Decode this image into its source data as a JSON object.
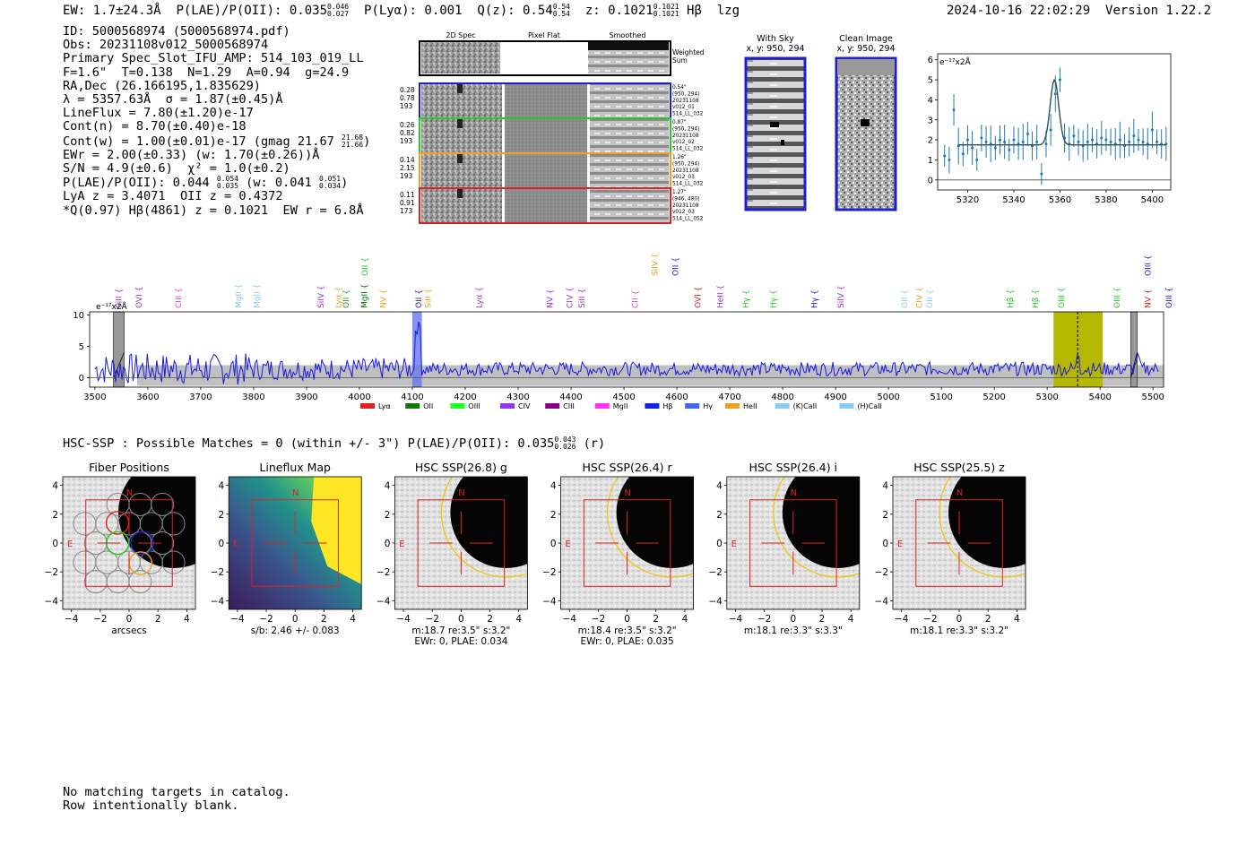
{
  "header": {
    "ew": "EW: 1.7±24.3Å",
    "plae_label": "P(LAE)/P(OII): 0.035",
    "plae_hi": "0.046",
    "plae_lo": "0.027",
    "plya": "P(Lyα): 0.001",
    "qz_label": "Q(z): 0.54",
    "qz_hi": "0.54",
    "qz_lo": "0.54",
    "z_label": "z: 0.1021",
    "z_hi": "0.1021",
    "z_lo": "0.1021",
    "line": "Hβ",
    "flag": "lzg",
    "timestamp": "2024-10-16 22:02:29",
    "version": "Version 1.22.2"
  },
  "info": {
    "id": "ID: 5000568974 (5000568974.pdf)",
    "obs": "Obs: 20231108v012_5000568974",
    "primary": "Primary Spec_Slot_IFU_AMP: 514_103_019_LL",
    "fit": "F=1.6\"  T=0.138  N=1.29  A=0.94  g=24.9",
    "radec": "RA,Dec (26.166195,1.835629)",
    "lambda": "λ = 5357.63Å  σ = 1.87(±0.45)Å",
    "lineflux": "LineFlux = 7.80(±1.20)e-17",
    "contn": "Cont(n) = 8.70(±0.40)e-18",
    "contw_pre": "Cont(w) = 1.00(±0.01)e-17 (gmag 21.67",
    "contw_hi": "21.68",
    "contw_lo": "21.66",
    "contw_post": ")",
    "ewr": "EWr = 2.00(±0.33) (w: 1.70(±0.26))Å",
    "sn": "S/N = 4.9(±0.6)  χ² = 1.0(±0.2)",
    "plae_pre": "P(LAE)/P(OII): 0.044",
    "plae_hi": "0.054",
    "plae_lo": "0.035",
    "plae_mid": " (w: 0.041",
    "plae_whi": "0.051",
    "plae_wlo": "0.034",
    "plae_post": ")",
    "lya": "LyA z = 3.4071  OII z = 0.4372",
    "q": "*Q(0.97) Hβ(4861) z = 0.1021  EW r = 6.8Å"
  },
  "cutouts": {
    "headers": [
      "2D Spec",
      "Pixel Flat",
      "Smoothed"
    ],
    "weighted": [
      "Weighted",
      "Sum"
    ],
    "rows": [
      {
        "color": "#1f1fcc",
        "left": [
          "0.28",
          "0.78",
          "193"
        ],
        "right": [
          "0.54\"",
          "(950, 294)",
          "20231108",
          "v012_01",
          "514_LL_032"
        ]
      },
      {
        "color": "#22cc22",
        "left": [
          "0.26",
          "0.82",
          "193"
        ],
        "right": [
          "0.87\"",
          "(950, 294)",
          "20231108",
          "v012_02",
          "514_LL_032"
        ]
      },
      {
        "color": "#f0a020",
        "left": [
          "0.14",
          "2.15",
          "193"
        ],
        "right": [
          "1.26\"",
          "(950, 294)",
          "20231108",
          "v012_03",
          "514_LL_032"
        ]
      },
      {
        "color": "#dd2222",
        "left": [
          "0.11",
          "0.91",
          "173"
        ],
        "right": [
          "1.27\"",
          "(946, 480)",
          "20231108",
          "v012_03",
          "514_LL_052"
        ]
      }
    ]
  },
  "sky": {
    "with_sky_title": "With Sky",
    "with_sky_coords": "x, y: 950, 294",
    "clean_title": "Clean Image",
    "clean_coords": "x, y: 950, 294"
  },
  "zoom_chart": {
    "type": "line",
    "ylabel": "e⁻¹⁷x2Å",
    "x_ticks": [
      "5320",
      "5340",
      "5360",
      "5380",
      "5400"
    ],
    "y_ticks": [
      "0",
      "1",
      "2",
      "3",
      "4",
      "5",
      "6"
    ],
    "xlim": [
      5307,
      5408
    ],
    "ylim": [
      -0.5,
      6.3
    ],
    "continuum": 1.75,
    "line_center": 5357.6,
    "line_peak": 5.0,
    "line_sigma": 1.87,
    "data_x": [
      5310,
      5312,
      5314,
      5316,
      5318,
      5320,
      5322,
      5324,
      5326,
      5328,
      5330,
      5332,
      5334,
      5336,
      5338,
      5340,
      5342,
      5344,
      5346,
      5348,
      5350,
      5352,
      5354,
      5356,
      5358,
      5360,
      5362,
      5364,
      5366,
      5368,
      5370,
      5372,
      5374,
      5376,
      5378,
      5380,
      5382,
      5384,
      5386,
      5388,
      5390,
      5392,
      5394,
      5396,
      5398,
      5400,
      5402,
      5404,
      5406
    ],
    "data_y": [
      1.2,
      1.0,
      3.5,
      1.7,
      1.3,
      2.0,
      1.6,
      1.0,
      2.1,
      1.9,
      1.8,
      1.6,
      2.0,
      1.9,
      1.5,
      2.0,
      1.8,
      1.9,
      2.3,
      1.7,
      1.9,
      0.3,
      1.8,
      2.5,
      4.3,
      5.0,
      2.1,
      1.8,
      2.2,
      1.9,
      1.7,
      1.9,
      2.0,
      1.8,
      2.1,
      2.0,
      1.9,
      1.8,
      2.0,
      1.7,
      1.9,
      2.2,
      2.0,
      1.9,
      1.8,
      2.5,
      1.9,
      1.8,
      1.8
    ]
  },
  "full_chart": {
    "type": "line",
    "ylabel": "e⁻¹⁷x2Å",
    "x_ticks": [
      "3500",
      "3600",
      "3700",
      "3800",
      "3900",
      "4000",
      "4100",
      "4200",
      "4300",
      "4400",
      "4500",
      "4600",
      "4700",
      "4800",
      "4900",
      "5000",
      "5100",
      "5200",
      "5300",
      "5400",
      "5500"
    ],
    "y_ticks": [
      "0",
      "5",
      "10"
    ],
    "xlim": [
      3490,
      5520
    ],
    "ylim": [
      -1.5,
      10.5
    ],
    "highlight_center": 5357.6,
    "highlight_range": [
      5312,
      5405
    ],
    "blue_band": [
      4100,
      4118
    ],
    "masked": [
      [
        3535,
        3555
      ],
      [
        5458,
        5470
      ]
    ],
    "line_labels": [
      {
        "w": 3545,
        "t": "SiII",
        "c": "#9933cc"
      },
      {
        "w": 3583,
        "t": "OVI",
        "c": "#9933cc"
      },
      {
        "w": 3658,
        "t": "CIII",
        "c": "#e040e0"
      },
      {
        "w": 3771,
        "t": "MgII",
        "c": "#88ccee"
      },
      {
        "w": 3806,
        "t": "MgII",
        "c": "#88ccee"
      },
      {
        "w": 3927,
        "t": "SiIV",
        "c": "#9933cc"
      },
      {
        "w": 3960,
        "t": "Lyα",
        "c": "#f0a020"
      },
      {
        "w": 3975,
        "t": "OII",
        "c": "#22aa22"
      },
      {
        "w": 4009,
        "t": "MgII",
        "c": "#006600"
      },
      {
        "w": 4045,
        "t": "NV",
        "c": "#f0a020"
      },
      {
        "w": 4112,
        "t": "OII",
        "c": "#1f1fcc"
      },
      {
        "w": 4130,
        "t": "SiII",
        "c": "#f0a020"
      },
      {
        "w": 4226,
        "t": "Lyα",
        "c": "#9933cc"
      },
      {
        "w": 4360,
        "t": "NV",
        "c": "#9933cc"
      },
      {
        "w": 4397,
        "t": "CIV",
        "c": "#9933cc"
      },
      {
        "w": 4420,
        "t": "SiII",
        "c": "#9933cc"
      },
      {
        "w": 4521,
        "t": "CII",
        "c": "#e040e0"
      },
      {
        "w": 4640,
        "t": "OVI",
        "c": "#dd2222"
      },
      {
        "w": 4682,
        "t": "HeII",
        "c": "#9933cc"
      },
      {
        "w": 4730,
        "t": "Hγ",
        "c": "#22cc22"
      },
      {
        "w": 4782,
        "t": "Hγ",
        "c": "#22cc22"
      },
      {
        "w": 4860,
        "t": "Hγ",
        "c": "#1f1fcc"
      },
      {
        "w": 4910,
        "t": "SiIV",
        "c": "#9933cc"
      },
      {
        "w": 5030,
        "t": "OII",
        "c": "#88ccee"
      },
      {
        "w": 5058,
        "t": "CIV",
        "c": "#f0a020"
      },
      {
        "w": 5078,
        "t": "OII",
        "c": "#88ccee"
      },
      {
        "w": 5230,
        "t": "Hβ",
        "c": "#22cc22"
      },
      {
        "w": 5278,
        "t": "Hβ",
        "c": "#22cc22"
      },
      {
        "w": 5327,
        "t": "OIII",
        "c": "#22cc22"
      },
      {
        "w": 5432,
        "t": "OIII",
        "c": "#22cc22"
      },
      {
        "w": 5490,
        "t": "NV",
        "c": "#dd2222"
      },
      {
        "w": 5540,
        "t": "OIII",
        "c": "#1f1fcc"
      }
    ],
    "upper_labels": [
      {
        "w": 4010,
        "t": "OII",
        "c": "#22cc22"
      },
      {
        "w": 4558,
        "t": "SiIV",
        "c": "#f0a020"
      },
      {
        "w": 4597,
        "t": "OII",
        "c": "#1f1fcc"
      },
      {
        "w": 5490,
        "t": "OIII",
        "c": "#1f1fcc"
      }
    ],
    "legend": [
      {
        "t": "Lyα",
        "c": "#dd2222"
      },
      {
        "t": "OII",
        "c": "#117711"
      },
      {
        "t": "OIII",
        "c": "#22ff22"
      },
      {
        "t": "CIV",
        "c": "#9933ee"
      },
      {
        "t": "CIII",
        "c": "#880088"
      },
      {
        "t": "MgII",
        "c": "#ff33ff"
      },
      {
        "t": "Hβ",
        "c": "#1122ee"
      },
      {
        "t": "Hγ",
        "c": "#4466ee"
      },
      {
        "t": "HeII",
        "c": "#f0a020"
      },
      {
        "t": "(K)CaII",
        "c": "#88ccee"
      },
      {
        "t": "(H)CaII",
        "c": "#88ccee"
      }
    ]
  },
  "hsc": {
    "summary_pre": "HSC-SSP : Possible Matches = 0 (within +/- 3\")  P(LAE)/P(OII): 0.035",
    "summary_hi": "0.043",
    "summary_lo": "0.026",
    "summary_post": "(r)",
    "panels": [
      {
        "title": "Fiber Positions",
        "sub1": "arcsecs",
        "sub2": ""
      },
      {
        "title": "Lineflux Map",
        "sub1": "s/b: 2.46 +/- 0.083",
        "sub2": ""
      },
      {
        "title": "HSC SSP(26.8) g",
        "sub1": "m:18.7  re:3.5\"  s:3.2\"",
        "sub2": "EWr: 0, PLAE: 0.034"
      },
      {
        "title": "HSC SSP(26.4) r",
        "sub1": "m:18.4  re:3.5\"  s:3.2\"",
        "sub2": "EWr: 0, PLAE: 0.035"
      },
      {
        "title": "HSC SSP(26.4) i",
        "sub1": "m:18.1  re:3.3\"  s:3.3\"",
        "sub2": ""
      },
      {
        "title": "HSC SSP(25.5) z",
        "sub1": "m:18.1  re:3.3\"  s:3.2\"",
        "sub2": ""
      }
    ],
    "axis_ticks_x": [
      "−4",
      "−2",
      "0",
      "2",
      "4"
    ],
    "axis_ticks_y": [
      "4",
      "2",
      "0",
      "−2",
      "−4"
    ],
    "north": "N",
    "east": "E"
  },
  "footer": {
    "line1": "No matching targets in catalog.",
    "line2": "Row intentionally blank."
  }
}
